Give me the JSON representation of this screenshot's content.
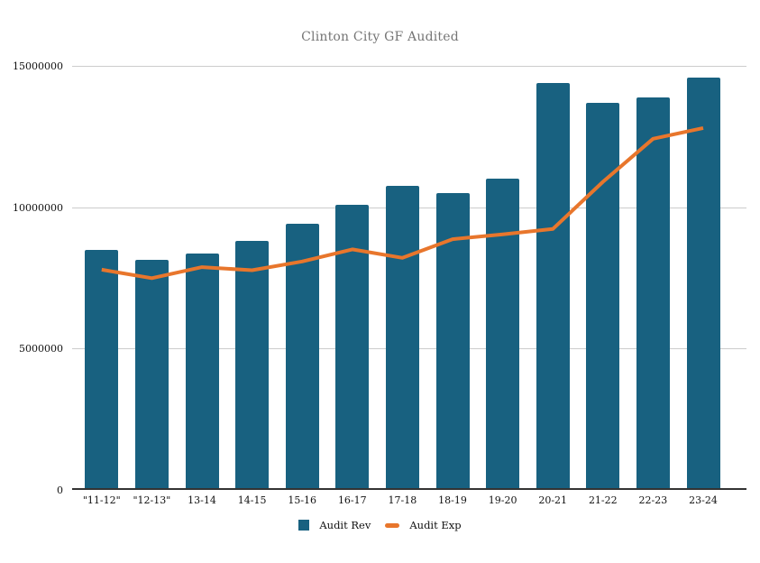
{
  "title": "Clinton City GF Audited",
  "chart_data": {
    "type": "bar",
    "subtype": "combo-bar-line",
    "title": "Clinton City GF Audited",
    "xlabel": "",
    "ylabel": "",
    "categories": [
      "\"11-12\"",
      "\"12-13\"",
      "13-14",
      "14-15",
      "15-16",
      "16-17",
      "17-18",
      "18-19",
      "19-20",
      "20-21",
      "21-22",
      "22-23",
      "23-24"
    ],
    "series": [
      {
        "name": "Audit Rev",
        "type": "bar",
        "color": "#186180",
        "values": [
          8500000,
          8140000,
          8350000,
          8800000,
          9420000,
          10100000,
          10770000,
          10500000,
          11010000,
          14390000,
          13690000,
          13880000,
          14600000
        ]
      },
      {
        "name": "Audit Exp",
        "type": "line",
        "color": "#e8762c",
        "values": [
          7790000,
          7490000,
          7880000,
          7770000,
          8080000,
          8510000,
          8210000,
          8870000,
          9040000,
          9230000,
          10900000,
          12420000,
          12800000
        ]
      }
    ],
    "ylim": [
      0,
      15000000
    ],
    "yticks": [
      0,
      5000000,
      10000000,
      15000000
    ],
    "ytick_labels": [
      "0",
      "5000000",
      "10000000",
      "15000000"
    ],
    "grid": true,
    "legend_position": "bottom",
    "background_color": "#ffffff",
    "gridline_color": "#cccccc",
    "axis_line_color": "#333333",
    "title_color": "#757575"
  }
}
